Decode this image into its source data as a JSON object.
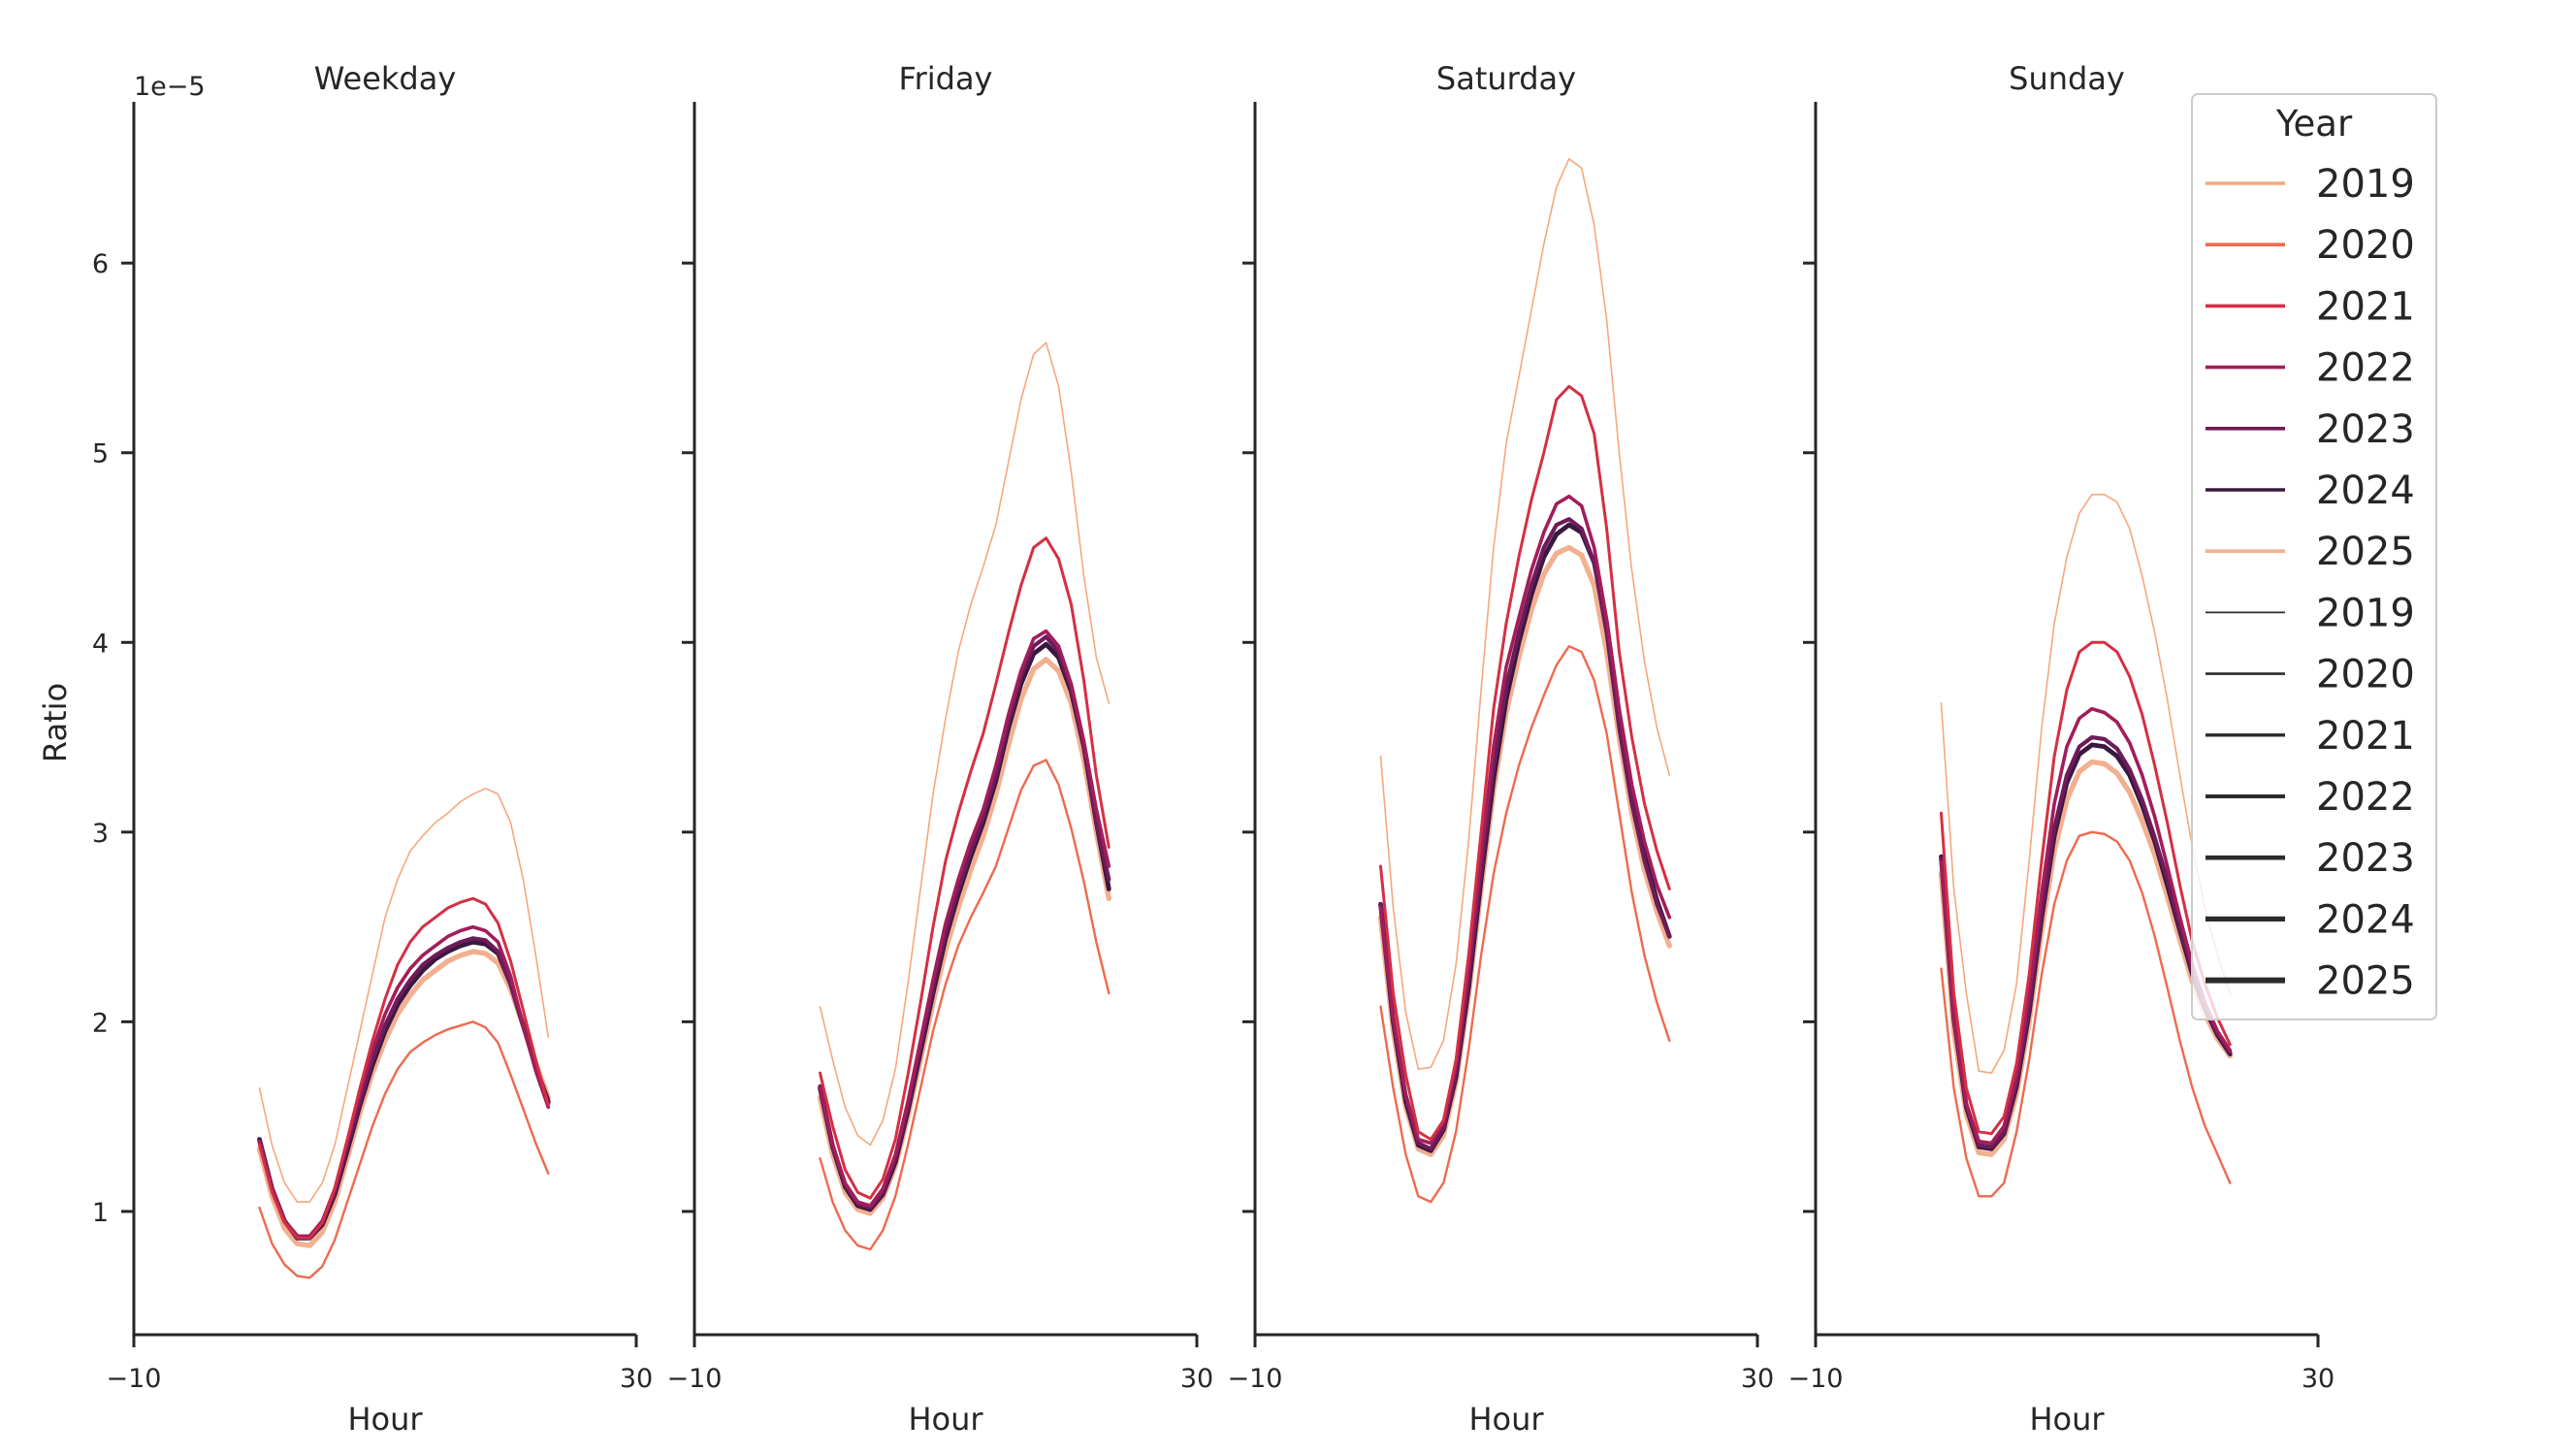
{
  "chart_data": {
    "type": "line",
    "suptitle": "",
    "ylabel": "Ratio",
    "y_offset_text": "1e−5",
    "ylim": [
      0.35,
      6.85
    ],
    "yticks": [
      1,
      2,
      3,
      4,
      5,
      6
    ],
    "ytick_labels": [
      "1",
      "2",
      "3",
      "4",
      "5",
      "6"
    ],
    "xlim": [
      -10,
      30
    ],
    "xticks": [
      -10,
      30
    ],
    "xtick_labels": [
      "−10",
      "30"
    ],
    "xlabel": "Hour",
    "hours": [
      0,
      1,
      2,
      3,
      4,
      5,
      6,
      7,
      8,
      9,
      10,
      11,
      12,
      13,
      14,
      15,
      16,
      17,
      18,
      19,
      20,
      21,
      22,
      23
    ],
    "colors": {
      "2019": "#f6a77d",
      "2020": "#ee6a4e",
      "2021": "#d52f44",
      "2022": "#a31d5a",
      "2023": "#6e1b5a",
      "2024": "#3a1840",
      "2025": "#f2b090",
      "size": "#2b2b2b"
    },
    "line_widths": {
      "2019": 1.6,
      "2020": 2.4,
      "2021": 3.0,
      "2022": 3.6,
      "2023": 4.2,
      "2024": 4.8,
      "2025": 5.4
    },
    "legend": {
      "title": "Year",
      "placement": "upper right",
      "hue_entries": [
        "2019",
        "2020",
        "2021",
        "2022",
        "2023",
        "2024",
        "2025"
      ],
      "size_entries": [
        "2019",
        "2020",
        "2021",
        "2022",
        "2023",
        "2024",
        "2025"
      ]
    },
    "panels": [
      {
        "title": "Weekday",
        "series": [
          {
            "name": "2019",
            "values": [
              1.65,
              1.35,
              1.15,
              1.05,
              1.05,
              1.15,
              1.35,
              1.65,
              1.95,
              2.25,
              2.55,
              2.75,
              2.9,
              2.98,
              3.05,
              3.1,
              3.16,
              3.2,
              3.23,
              3.2,
              3.05,
              2.75,
              2.35,
              1.92
            ]
          },
          {
            "name": "2020",
            "values": [
              1.02,
              0.83,
              0.72,
              0.66,
              0.65,
              0.71,
              0.85,
              1.05,
              1.25,
              1.45,
              1.62,
              1.75,
              1.84,
              1.89,
              1.93,
              1.96,
              1.98,
              2.0,
              1.97,
              1.89,
              1.72,
              1.54,
              1.36,
              1.2
            ]
          },
          {
            "name": "2021",
            "values": [
              1.35,
              1.1,
              0.94,
              0.86,
              0.86,
              0.94,
              1.12,
              1.38,
              1.65,
              1.9,
              2.12,
              2.3,
              2.42,
              2.5,
              2.55,
              2.6,
              2.63,
              2.65,
              2.62,
              2.52,
              2.32,
              2.06,
              1.8,
              1.56
            ]
          },
          {
            "name": "2022",
            "values": [
              1.37,
              1.12,
              0.95,
              0.87,
              0.87,
              0.95,
              1.12,
              1.37,
              1.62,
              1.85,
              2.04,
              2.18,
              2.28,
              2.35,
              2.4,
              2.45,
              2.48,
              2.5,
              2.48,
              2.42,
              2.24,
              1.98,
              1.74,
              1.55
            ]
          },
          {
            "name": "2023",
            "values": [
              1.37,
              1.12,
              0.95,
              0.87,
              0.86,
              0.94,
              1.1,
              1.34,
              1.58,
              1.8,
              1.98,
              2.12,
              2.22,
              2.3,
              2.35,
              2.39,
              2.42,
              2.44,
              2.43,
              2.37,
              2.2,
              1.98,
              1.76,
              1.57
            ]
          },
          {
            "name": "2024",
            "values": [
              1.38,
              1.12,
              0.95,
              0.86,
              0.86,
              0.93,
              1.09,
              1.32,
              1.56,
              1.77,
              1.95,
              2.09,
              2.19,
              2.27,
              2.33,
              2.37,
              2.4,
              2.42,
              2.41,
              2.36,
              2.2,
              1.98,
              1.76,
              1.58
            ]
          },
          {
            "name": "2025",
            "values": [
              1.33,
              1.08,
              0.91,
              0.83,
              0.82,
              0.89,
              1.05,
              1.28,
              1.52,
              1.73,
              1.9,
              2.04,
              2.14,
              2.22,
              2.27,
              2.32,
              2.35,
              2.37,
              2.36,
              2.31,
              2.17,
              1.98,
              1.78,
              1.6
            ]
          }
        ]
      },
      {
        "title": "Friday",
        "series": [
          {
            "name": "2019",
            "values": [
              2.08,
              1.8,
              1.55,
              1.4,
              1.35,
              1.48,
              1.75,
              2.2,
              2.7,
              3.2,
              3.6,
              3.95,
              4.2,
              4.4,
              4.62,
              4.95,
              5.28,
              5.52,
              5.58,
              5.35,
              4.9,
              4.35,
              3.92,
              3.68
            ]
          },
          {
            "name": "2020",
            "values": [
              1.28,
              1.05,
              0.9,
              0.82,
              0.8,
              0.9,
              1.08,
              1.35,
              1.65,
              1.95,
              2.2,
              2.4,
              2.55,
              2.68,
              2.82,
              3.02,
              3.22,
              3.35,
              3.38,
              3.25,
              3.02,
              2.74,
              2.42,
              2.15
            ]
          },
          {
            "name": "2021",
            "values": [
              1.73,
              1.45,
              1.22,
              1.1,
              1.07,
              1.17,
              1.38,
              1.72,
              2.1,
              2.5,
              2.85,
              3.1,
              3.32,
              3.52,
              3.78,
              4.05,
              4.3,
              4.5,
              4.55,
              4.44,
              4.2,
              3.8,
              3.3,
              2.92
            ]
          },
          {
            "name": "2022",
            "values": [
              1.65,
              1.35,
              1.15,
              1.05,
              1.03,
              1.12,
              1.3,
              1.58,
              1.9,
              2.22,
              2.52,
              2.75,
              2.95,
              3.12,
              3.35,
              3.62,
              3.85,
              4.02,
              4.06,
              3.98,
              3.78,
              3.48,
              3.12,
              2.82
            ]
          },
          {
            "name": "2023",
            "values": [
              1.66,
              1.35,
              1.14,
              1.04,
              1.02,
              1.1,
              1.28,
              1.55,
              1.87,
              2.18,
              2.47,
              2.7,
              2.9,
              3.08,
              3.3,
              3.58,
              3.82,
              3.98,
              4.03,
              3.95,
              3.76,
              3.45,
              3.05,
              2.75
            ]
          },
          {
            "name": "2024",
            "values": [
              1.65,
              1.34,
              1.13,
              1.03,
              1.01,
              1.09,
              1.26,
              1.53,
              1.84,
              2.15,
              2.44,
              2.67,
              2.87,
              3.05,
              3.27,
              3.55,
              3.78,
              3.94,
              3.99,
              3.92,
              3.74,
              3.45,
              3.05,
              2.7
            ]
          },
          {
            "name": "2025",
            "values": [
              1.6,
              1.3,
              1.1,
              1.01,
              0.99,
              1.07,
              1.24,
              1.5,
              1.8,
              2.1,
              2.38,
              2.6,
              2.8,
              2.98,
              3.2,
              3.46,
              3.7,
              3.86,
              3.91,
              3.85,
              3.68,
              3.38,
              3.0,
              2.65
            ]
          }
        ]
      },
      {
        "title": "Saturday",
        "series": [
          {
            "name": "2019",
            "values": [
              3.4,
              2.6,
              2.05,
              1.75,
              1.76,
              1.9,
              2.3,
              2.95,
              3.75,
              4.5,
              5.05,
              5.4,
              5.75,
              6.1,
              6.4,
              6.55,
              6.5,
              6.2,
              5.7,
              5.0,
              4.38,
              3.9,
              3.55,
              3.3
            ]
          },
          {
            "name": "2020",
            "values": [
              2.08,
              1.65,
              1.3,
              1.08,
              1.05,
              1.15,
              1.42,
              1.85,
              2.35,
              2.78,
              3.1,
              3.35,
              3.55,
              3.72,
              3.88,
              3.98,
              3.95,
              3.8,
              3.52,
              3.1,
              2.68,
              2.35,
              2.1,
              1.9
            ]
          },
          {
            "name": "2021",
            "values": [
              2.82,
              2.15,
              1.72,
              1.42,
              1.38,
              1.48,
              1.8,
              2.35,
              3.0,
              3.65,
              4.1,
              4.45,
              4.75,
              5.0,
              5.28,
              5.35,
              5.3,
              5.1,
              4.6,
              3.95,
              3.5,
              3.15,
              2.9,
              2.7
            ]
          },
          {
            "name": "2022",
            "values": [
              2.6,
              2.02,
              1.62,
              1.38,
              1.36,
              1.47,
              1.77,
              2.28,
              2.88,
              3.45,
              3.87,
              4.13,
              4.38,
              4.58,
              4.73,
              4.77,
              4.72,
              4.5,
              4.12,
              3.65,
              3.25,
              2.95,
              2.72,
              2.55
            ]
          },
          {
            "name": "2023",
            "values": [
              2.62,
              2.02,
              1.6,
              1.36,
              1.33,
              1.44,
              1.73,
              2.22,
              2.8,
              3.35,
              3.77,
              4.05,
              4.3,
              4.5,
              4.62,
              4.65,
              4.6,
              4.42,
              4.05,
              3.55,
              3.15,
              2.85,
              2.62,
              2.45
            ]
          },
          {
            "name": "2024",
            "values": [
              2.62,
              2.0,
              1.58,
              1.35,
              1.32,
              1.43,
              1.71,
              2.18,
              2.75,
              3.28,
              3.7,
              4.0,
              4.25,
              4.45,
              4.57,
              4.62,
              4.58,
              4.42,
              4.1,
              3.62,
              3.2,
              2.88,
              2.64,
              2.45
            ]
          },
          {
            "name": "2025",
            "values": [
              2.55,
              1.95,
              1.55,
              1.33,
              1.3,
              1.4,
              1.68,
              2.14,
              2.7,
              3.22,
              3.63,
              3.92,
              4.17,
              4.36,
              4.47,
              4.5,
              4.46,
              4.3,
              3.95,
              3.5,
              3.1,
              2.8,
              2.58,
              2.4
            ]
          }
        ]
      },
      {
        "title": "Sunday",
        "series": [
          {
            "name": "2019",
            "values": [
              3.68,
              2.7,
              2.15,
              1.74,
              1.73,
              1.85,
              2.2,
              2.85,
              3.55,
              4.1,
              4.45,
              4.68,
              4.78,
              4.78,
              4.74,
              4.6,
              4.35,
              4.05,
              3.7,
              3.3,
              2.92,
              2.6,
              2.35,
              2.15
            ]
          },
          {
            "name": "2020",
            "values": [
              2.28,
              1.65,
              1.28,
              1.08,
              1.08,
              1.15,
              1.42,
              1.8,
              2.25,
              2.62,
              2.85,
              2.98,
              3.0,
              2.99,
              2.95,
              2.85,
              2.68,
              2.45,
              2.18,
              1.9,
              1.65,
              1.45,
              1.3,
              1.15
            ]
          },
          {
            "name": "2021",
            "values": [
              3.1,
              2.15,
              1.65,
              1.42,
              1.41,
              1.5,
              1.78,
              2.25,
              2.85,
              3.4,
              3.75,
              3.95,
              4.0,
              4.0,
              3.95,
              3.82,
              3.62,
              3.35,
              3.05,
              2.72,
              2.42,
              2.2,
              2.02,
              1.88
            ]
          },
          {
            "name": "2022",
            "values": [
              2.84,
              2.02,
              1.57,
              1.37,
              1.36,
              1.45,
              1.72,
              2.15,
              2.68,
              3.15,
              3.45,
              3.6,
              3.65,
              3.63,
              3.58,
              3.47,
              3.3,
              3.08,
              2.82,
              2.55,
              2.3,
              2.1,
              1.95,
              1.85
            ]
          },
          {
            "name": "2023",
            "values": [
              2.86,
              2.02,
              1.56,
              1.35,
              1.34,
              1.42,
              1.68,
              2.08,
              2.58,
              3.02,
              3.3,
              3.45,
              3.5,
              3.49,
              3.44,
              3.33,
              3.17,
              2.97,
              2.75,
              2.5,
              2.27,
              2.08,
              1.94,
              1.84
            ]
          },
          {
            "name": "2024",
            "values": [
              2.87,
              2.02,
              1.55,
              1.34,
              1.33,
              1.41,
              1.66,
              2.05,
              2.55,
              2.98,
              3.26,
              3.41,
              3.46,
              3.45,
              3.4,
              3.3,
              3.14,
              2.95,
              2.72,
              2.48,
              2.25,
              2.07,
              1.93,
              1.83
            ]
          },
          {
            "name": "2025",
            "values": [
              2.78,
              1.95,
              1.51,
              1.31,
              1.3,
              1.38,
              1.62,
              2.0,
              2.48,
              2.9,
              3.17,
              3.32,
              3.37,
              3.36,
              3.31,
              3.21,
              3.06,
              2.88,
              2.66,
              2.43,
              2.21,
              2.04,
              1.91,
              1.82
            ]
          }
        ]
      }
    ]
  }
}
